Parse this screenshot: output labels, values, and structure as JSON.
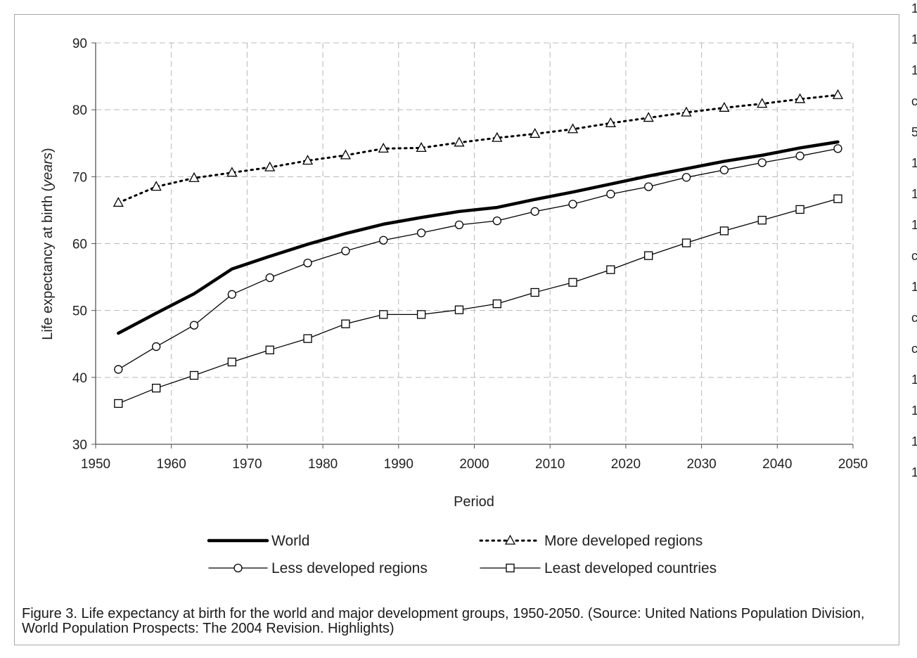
{
  "chart_data": {
    "type": "line",
    "xlabel": "Period",
    "ylabel": "Life expectancy at birth (years)",
    "ylabel_parts": [
      "Life expectancy at birth (",
      "years",
      ")"
    ],
    "xlim": [
      1950,
      2050
    ],
    "ylim": [
      30,
      90
    ],
    "xticks": [
      1950,
      1960,
      1970,
      1980,
      1990,
      2000,
      2010,
      2020,
      2030,
      2040,
      2050
    ],
    "yticks": [
      30,
      40,
      50,
      60,
      70,
      80,
      90
    ],
    "grid": true,
    "legend_position": "bottom",
    "x": [
      1953,
      1958,
      1963,
      1968,
      1973,
      1978,
      1983,
      1988,
      1993,
      1998,
      2003,
      2008,
      2013,
      2018,
      2023,
      2028,
      2033,
      2038,
      2043,
      2048
    ],
    "series": [
      {
        "name": "World",
        "style": "thick-solid",
        "color": "#000000",
        "values": [
          46.6,
          49.6,
          52.5,
          56.2,
          58.1,
          59.9,
          61.5,
          62.9,
          63.9,
          64.8,
          65.4,
          66.6,
          67.7,
          68.9,
          70.1,
          71.2,
          72.3,
          73.2,
          74.3,
          75.2
        ]
      },
      {
        "name": "More developed regions",
        "style": "dotted-triangle",
        "color": "#000000",
        "values": [
          66.1,
          68.5,
          69.8,
          70.6,
          71.4,
          72.4,
          73.2,
          74.2,
          74.3,
          75.1,
          75.8,
          76.4,
          77.1,
          78.0,
          78.8,
          79.6,
          80.3,
          80.9,
          81.6,
          82.2
        ]
      },
      {
        "name": "Less developed regions",
        "style": "thin-circle",
        "color": "#000000",
        "values": [
          41.2,
          44.6,
          47.8,
          52.4,
          54.9,
          57.1,
          58.9,
          60.5,
          61.6,
          62.8,
          63.4,
          64.8,
          65.9,
          67.4,
          68.5,
          69.9,
          71.0,
          72.1,
          73.1,
          74.2
        ]
      },
      {
        "name": "Least developed countries",
        "style": "thin-square",
        "color": "#000000",
        "values": [
          36.1,
          38.4,
          40.3,
          42.3,
          44.1,
          45.8,
          48.0,
          49.4,
          49.4,
          50.1,
          51.0,
          52.7,
          54.2,
          56.1,
          58.2,
          60.1,
          61.9,
          63.5,
          65.1,
          66.7
        ]
      }
    ]
  },
  "caption": {
    "text": "Figure 3. Life expectancy at birth for the world and major development groups, 1950-2050. (Source: United Nations Population Division, World Population Prospects: The 2004 Revision. Highlights)"
  },
  "clipped_fragments": [
    "1",
    "1",
    "1",
    "c",
    "5",
    "1",
    "1",
    "1",
    "c",
    "1",
    "c",
    "c",
    "1",
    "1",
    "1",
    "1"
  ]
}
